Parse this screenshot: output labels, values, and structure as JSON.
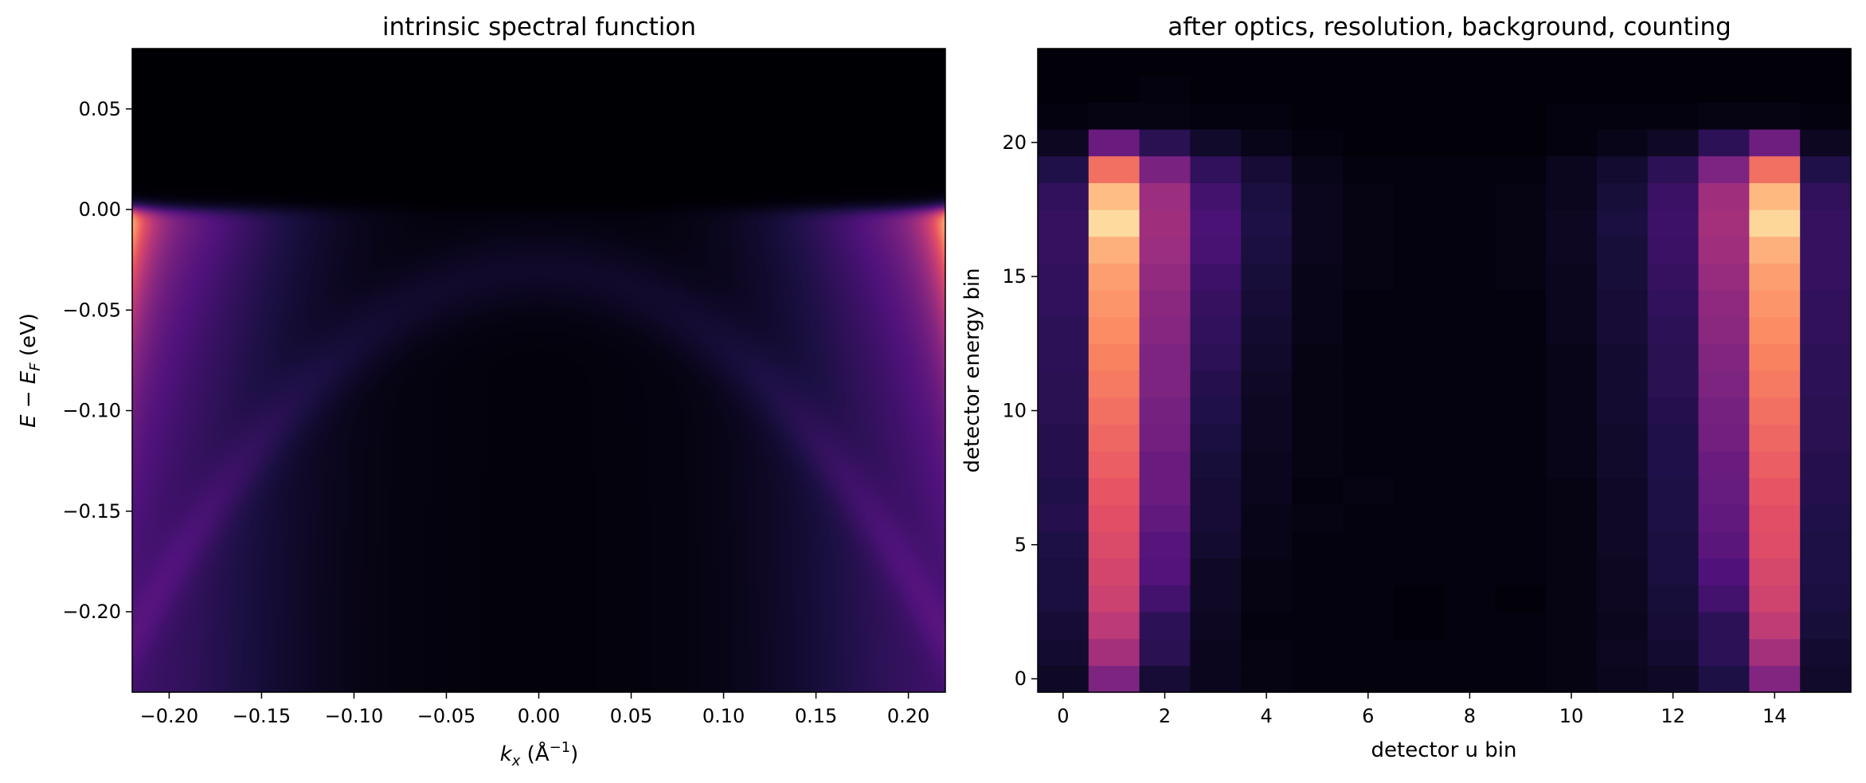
{
  "chart_data": [
    {
      "type": "heatmap",
      "title": "intrinsic spectral function",
      "xlabel": "k_x (Å⁻¹)",
      "ylabel": "E − E_F (eV)",
      "xlim": [
        -0.22,
        0.22
      ],
      "ylim": [
        -0.24,
        0.08
      ],
      "xticks": [
        -0.2,
        -0.15,
        -0.1,
        -0.05,
        0.0,
        0.05,
        0.1,
        0.15,
        0.2
      ],
      "xtick_labels": [
        "−0.20",
        "−0.15",
        "−0.10",
        "−0.05",
        "0.00",
        "0.05",
        "0.10",
        "0.15",
        "0.20"
      ],
      "yticks": [
        0.05,
        0.0,
        -0.05,
        -0.1,
        -0.15,
        -0.2
      ],
      "ytick_labels": [
        "0.05",
        "0.00",
        "−0.05",
        "−0.10",
        "−0.15",
        "−0.20"
      ],
      "colormap": "magma",
      "model": {
        "fermi_level_eV": 0.0,
        "fermi_width_eV": 0.002,
        "peak_k_abs": 0.22,
        "peak_sigma_k": 0.06,
        "band_top_eV": -0.03,
        "band_curvature": 3.8
      }
    },
    {
      "type": "heatmap",
      "title": "after optics, resolution, background, counting",
      "xlabel": "detector u bin",
      "ylabel": "detector energy bin",
      "xlim": [
        -0.5,
        15.5
      ],
      "ylim": [
        -0.5,
        23.5
      ],
      "xticks": [
        0,
        2,
        4,
        6,
        8,
        10,
        12,
        14
      ],
      "yticks": [
        0,
        5,
        10,
        15,
        20
      ],
      "colormap": "magma",
      "value_range": [
        0,
        1
      ],
      "column_profile": [
        0.06,
        0.5,
        0.4,
        0.2,
        0.08,
        0.03,
        0.015,
        0.01,
        0.01,
        0.015,
        0.03,
        0.08,
        0.2,
        0.4,
        0.5,
        0.09
      ],
      "values": [
        [
          0.07,
          0.37,
          0.1,
          0.05,
          0.03,
          0.02,
          0.02,
          0.02,
          0.02,
          0.02,
          0.03,
          0.05,
          0.07,
          0.13,
          0.38,
          0.08
        ],
        [
          0.09,
          0.46,
          0.16,
          0.05,
          0.03,
          0.02,
          0.02,
          0.02,
          0.02,
          0.02,
          0.03,
          0.06,
          0.09,
          0.17,
          0.46,
          0.09
        ],
        [
          0.1,
          0.52,
          0.17,
          0.06,
          0.02,
          0.02,
          0.02,
          0.01,
          0.02,
          0.02,
          0.03,
          0.05,
          0.1,
          0.17,
          0.53,
          0.11
        ],
        [
          0.12,
          0.56,
          0.22,
          0.07,
          0.03,
          0.02,
          0.02,
          0.01,
          0.02,
          0.01,
          0.03,
          0.06,
          0.11,
          0.22,
          0.57,
          0.12
        ],
        [
          0.12,
          0.58,
          0.26,
          0.07,
          0.03,
          0.02,
          0.02,
          0.02,
          0.02,
          0.02,
          0.03,
          0.06,
          0.12,
          0.25,
          0.59,
          0.13
        ],
        [
          0.13,
          0.6,
          0.27,
          0.09,
          0.04,
          0.02,
          0.02,
          0.02,
          0.02,
          0.02,
          0.03,
          0.07,
          0.12,
          0.28,
          0.61,
          0.13
        ],
        [
          0.15,
          0.62,
          0.3,
          0.1,
          0.04,
          0.03,
          0.02,
          0.02,
          0.02,
          0.02,
          0.03,
          0.07,
          0.13,
          0.3,
          0.62,
          0.14
        ],
        [
          0.14,
          0.64,
          0.32,
          0.1,
          0.05,
          0.02,
          0.03,
          0.02,
          0.02,
          0.02,
          0.03,
          0.07,
          0.13,
          0.31,
          0.64,
          0.15
        ],
        [
          0.15,
          0.66,
          0.32,
          0.11,
          0.05,
          0.03,
          0.02,
          0.02,
          0.02,
          0.02,
          0.04,
          0.08,
          0.14,
          0.32,
          0.66,
          0.15
        ],
        [
          0.15,
          0.68,
          0.34,
          0.12,
          0.06,
          0.03,
          0.02,
          0.02,
          0.02,
          0.02,
          0.04,
          0.08,
          0.14,
          0.34,
          0.68,
          0.16
        ],
        [
          0.16,
          0.7,
          0.35,
          0.14,
          0.06,
          0.03,
          0.02,
          0.02,
          0.02,
          0.02,
          0.04,
          0.09,
          0.15,
          0.35,
          0.7,
          0.16
        ],
        [
          0.16,
          0.72,
          0.37,
          0.15,
          0.07,
          0.03,
          0.02,
          0.02,
          0.02,
          0.02,
          0.04,
          0.09,
          0.16,
          0.37,
          0.72,
          0.17
        ],
        [
          0.17,
          0.74,
          0.37,
          0.17,
          0.08,
          0.03,
          0.02,
          0.02,
          0.02,
          0.02,
          0.04,
          0.09,
          0.16,
          0.38,
          0.74,
          0.17
        ],
        [
          0.17,
          0.76,
          0.39,
          0.18,
          0.09,
          0.04,
          0.02,
          0.02,
          0.02,
          0.02,
          0.05,
          0.1,
          0.17,
          0.4,
          0.76,
          0.18
        ],
        [
          0.18,
          0.78,
          0.4,
          0.19,
          0.1,
          0.04,
          0.02,
          0.02,
          0.02,
          0.02,
          0.05,
          0.1,
          0.18,
          0.41,
          0.78,
          0.18
        ],
        [
          0.18,
          0.8,
          0.42,
          0.21,
          0.11,
          0.04,
          0.03,
          0.02,
          0.02,
          0.03,
          0.05,
          0.11,
          0.19,
          0.43,
          0.8,
          0.19
        ],
        [
          0.19,
          0.84,
          0.44,
          0.23,
          0.12,
          0.05,
          0.03,
          0.02,
          0.02,
          0.03,
          0.06,
          0.11,
          0.2,
          0.45,
          0.84,
          0.19
        ],
        [
          0.19,
          0.93,
          0.45,
          0.24,
          0.13,
          0.05,
          0.03,
          0.02,
          0.02,
          0.03,
          0.06,
          0.12,
          0.21,
          0.46,
          0.92,
          0.19
        ],
        [
          0.18,
          0.87,
          0.44,
          0.22,
          0.12,
          0.05,
          0.03,
          0.02,
          0.02,
          0.03,
          0.05,
          0.11,
          0.2,
          0.45,
          0.86,
          0.18
        ],
        [
          0.14,
          0.7,
          0.36,
          0.18,
          0.1,
          0.04,
          0.02,
          0.02,
          0.02,
          0.02,
          0.05,
          0.09,
          0.17,
          0.37,
          0.7,
          0.14
        ],
        [
          0.06,
          0.32,
          0.16,
          0.08,
          0.04,
          0.02,
          0.01,
          0.01,
          0.01,
          0.01,
          0.02,
          0.04,
          0.07,
          0.17,
          0.33,
          0.06
        ],
        [
          0.02,
          0.03,
          0.03,
          0.02,
          0.02,
          0.01,
          0.01,
          0.01,
          0.01,
          0.01,
          0.02,
          0.02,
          0.02,
          0.03,
          0.03,
          0.02
        ],
        [
          0.01,
          0.01,
          0.02,
          0.01,
          0.01,
          0.01,
          0.01,
          0.01,
          0.01,
          0.01,
          0.01,
          0.01,
          0.01,
          0.01,
          0.01,
          0.01
        ],
        [
          0.01,
          0.01,
          0.01,
          0.01,
          0.01,
          0.01,
          0.01,
          0.01,
          0.01,
          0.01,
          0.01,
          0.01,
          0.01,
          0.01,
          0.01,
          0.01
        ]
      ]
    }
  ]
}
